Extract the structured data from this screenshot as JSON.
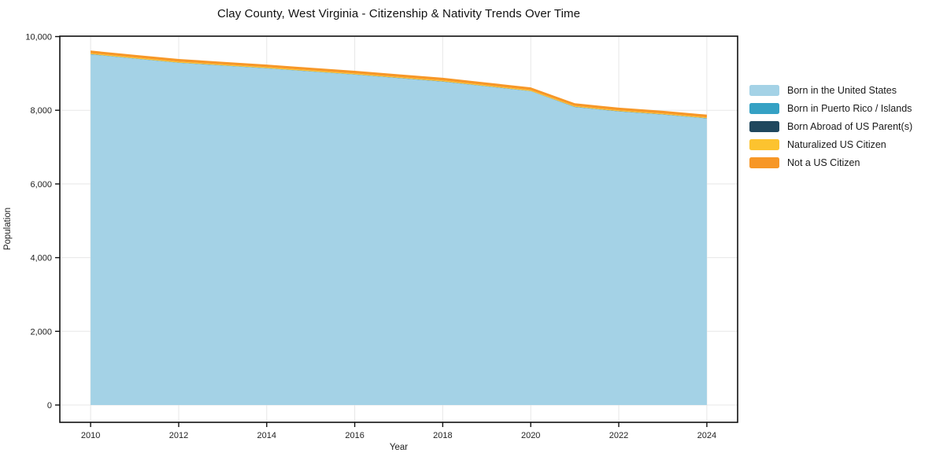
{
  "chart_data": {
    "type": "area",
    "stacked": true,
    "title": "Clay County, West Virginia - Citizenship & Nativity Trends Over Time",
    "xlabel": "Year",
    "ylabel": "Population",
    "x": [
      2010,
      2011,
      2012,
      2013,
      2014,
      2015,
      2016,
      2017,
      2018,
      2019,
      2020,
      2021,
      2022,
      2023,
      2024
    ],
    "series": [
      {
        "name": "Born in the United States",
        "color": "#a4d2e6",
        "values": [
          9515,
          9400,
          9285,
          9210,
          9135,
          9050,
          8965,
          8870,
          8775,
          8645,
          8515,
          8085,
          7965,
          7880,
          7775
        ]
      },
      {
        "name": "Born in Puerto Rico / Islands",
        "color": "#35a1c4",
        "values": [
          4,
          4,
          4,
          4,
          4,
          4,
          4,
          4,
          4,
          4,
          4,
          4,
          4,
          4,
          4
        ]
      },
      {
        "name": "Born Abroad of US Parent(s)",
        "color": "#20485e",
        "values": [
          4,
          4,
          4,
          4,
          4,
          4,
          4,
          4,
          4,
          4,
          4,
          4,
          4,
          4,
          4
        ]
      },
      {
        "name": "Naturalized US Citizen",
        "color": "#fcc32f",
        "values": [
          25,
          25,
          25,
          25,
          25,
          25,
          25,
          25,
          25,
          25,
          25,
          25,
          25,
          25,
          25
        ]
      },
      {
        "name": "Not a US Citizen",
        "color": "#f79727",
        "values": [
          72,
          72,
          72,
          72,
          72,
          72,
          72,
          72,
          72,
          72,
          72,
          72,
          72,
          72,
          72
        ]
      }
    ],
    "stack_totals": [
      9620,
      9505,
      9390,
      9315,
      9240,
      9155,
      9070,
      8975,
      8880,
      8750,
      8620,
      8190,
      8070,
      7985,
      7880
    ],
    "xlim": [
      2009.3,
      2024.7
    ],
    "ylim": [
      -470,
      10010
    ],
    "xticks": [
      2010,
      2012,
      2014,
      2016,
      2018,
      2020,
      2022,
      2024
    ],
    "xtick_labels": [
      "2010",
      "2012",
      "2014",
      "2016",
      "2018",
      "2020",
      "2022",
      "2024"
    ],
    "yticks": [
      0,
      2000,
      4000,
      6000,
      8000,
      10000
    ],
    "ytick_labels": [
      "0",
      "2,000",
      "4,000",
      "6,000",
      "8,000",
      "10,000"
    ],
    "grid": true,
    "grid_color": "#e7e7e7",
    "spine_color": "#111111",
    "tick_label_color": "#222222",
    "legend_position": "right"
  }
}
